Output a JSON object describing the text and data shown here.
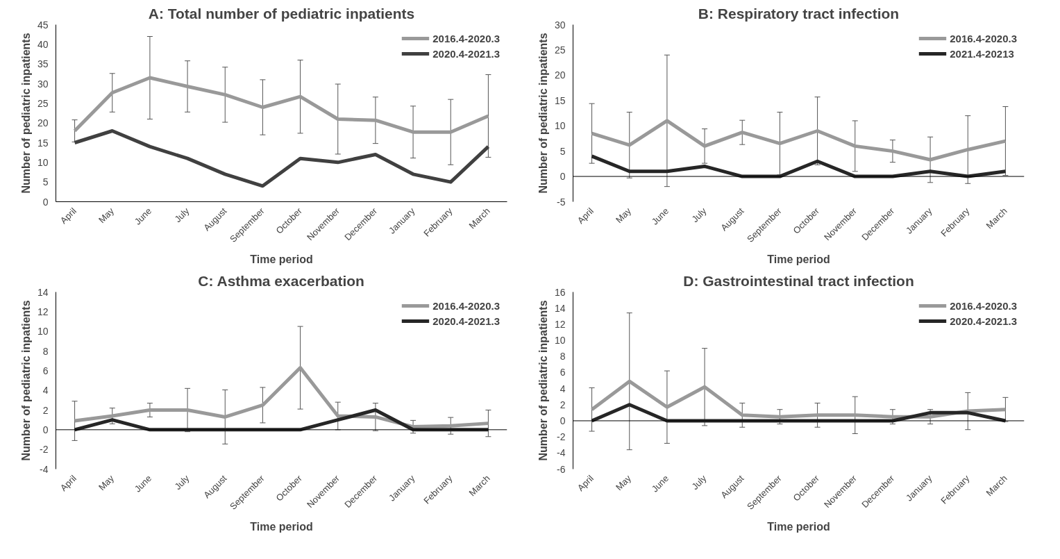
{
  "chart_data": [
    {
      "type": "line",
      "title": "A: Total number of pediatric inpatients",
      "xlabel": "Time period",
      "ylabel": "Number of pediatric inpatients",
      "categories": [
        "April",
        "May",
        "June",
        "July",
        "August",
        "September",
        "October",
        "November",
        "December",
        "January",
        "February",
        "March"
      ],
      "ylim": [
        0,
        45
      ],
      "yticks": [
        0,
        5,
        10,
        15,
        20,
        25,
        30,
        35,
        40,
        45
      ],
      "grid": false,
      "legend": "top right",
      "marker": "none",
      "line_style": "solid",
      "series": [
        {
          "name": "2016.4-2020.3",
          "color": "#999999",
          "values": [
            18,
            27.7,
            31.5,
            29.3,
            27.2,
            24,
            26.7,
            21,
            20.7,
            17.7,
            17.7,
            21.8
          ],
          "errors": [
            2.8,
            4.9,
            10.5,
            6.5,
            7,
            7,
            9.3,
            8.9,
            5.9,
            6.6,
            8.3,
            10.5
          ]
        },
        {
          "name": "2020.4-2021.3",
          "color": "#404040",
          "values": [
            15,
            18,
            14,
            11,
            7,
            4,
            11,
            10,
            12,
            7,
            5,
            14
          ]
        }
      ]
    },
    {
      "type": "line",
      "title": "B: Respiratory tract infection",
      "xlabel": "Time period",
      "ylabel": "Number of pediatric inpatients",
      "categories": [
        "April",
        "May",
        "June",
        "July",
        "August",
        "September",
        "October",
        "November",
        "December",
        "January",
        "February",
        "March"
      ],
      "ref_lines": [
        {
          "axis": "y",
          "value": 0,
          "color": "#000000"
        }
      ],
      "ylim": [
        -5,
        30
      ],
      "yticks": [
        -5,
        0,
        5,
        10,
        15,
        20,
        25,
        30
      ],
      "grid": false,
      "legend": "top right",
      "marker": "none",
      "line_style": "solid",
      "series": [
        {
          "name": "2016.4-2020.3",
          "color": "#999999",
          "values": [
            8.5,
            6.2,
            11,
            6,
            8.7,
            6.5,
            9,
            6,
            5,
            3.3,
            5.3,
            7
          ],
          "errors": [
            5.9,
            6.5,
            13,
            3.4,
            2.4,
            6.2,
            6.7,
            5,
            2.2,
            4.5,
            6.7,
            6.8
          ]
        },
        {
          "name": "2021.4-20213",
          "color": "#262626",
          "values": [
            4,
            1,
            1,
            2,
            0,
            0,
            3,
            0,
            0,
            1,
            0,
            1
          ]
        }
      ]
    },
    {
      "type": "line",
      "title": "C: Asthma exacerbation",
      "xlabel": "Time period",
      "ylabel": "Number of pediatric inpatients",
      "categories": [
        "April",
        "May",
        "June",
        "July",
        "August",
        "September",
        "October",
        "November",
        "December",
        "January",
        "February",
        "March"
      ],
      "ref_lines": [
        {
          "axis": "y",
          "value": 0,
          "color": "#000000"
        }
      ],
      "ylim": [
        -4,
        14
      ],
      "yticks": [
        -4,
        -2,
        0,
        2,
        4,
        6,
        8,
        10,
        12,
        14
      ],
      "grid": false,
      "legend": "top right",
      "marker": "none",
      "line_style": "solid",
      "series": [
        {
          "name": "2016.4-2020.3",
          "color": "#999999",
          "values": [
            0.9,
            1.4,
            2,
            2,
            1.3,
            2.5,
            6.3,
            1.4,
            1.3,
            0.3,
            0.4,
            0.65
          ],
          "errors": [
            2,
            0.8,
            0.7,
            2.2,
            2.75,
            1.8,
            4.2,
            1.4,
            1.4,
            0.65,
            0.85,
            1.35
          ]
        },
        {
          "name": "2020.4-2021.3",
          "color": "#262626",
          "values": [
            0,
            1,
            0,
            0,
            0,
            0,
            0,
            1,
            2,
            0,
            0,
            0
          ]
        }
      ]
    },
    {
      "type": "line",
      "title": "D: Gastrointestinal tract infection",
      "xlabel": "Time period",
      "ylabel": "Number of pediatric inpatients",
      "categories": [
        "April",
        "May",
        "June",
        "July",
        "August",
        "September",
        "October",
        "November",
        "December",
        "January",
        "February",
        "March"
      ],
      "ref_lines": [
        {
          "axis": "y",
          "value": 0,
          "color": "#000000"
        }
      ],
      "ylim": [
        -6,
        16
      ],
      "yticks": [
        -6,
        -4,
        -2,
        0,
        2,
        4,
        6,
        8,
        10,
        12,
        14,
        16
      ],
      "grid": false,
      "legend": "top right",
      "marker": "none",
      "line_style": "solid",
      "series": [
        {
          "name": "2016.4-2020.3",
          "color": "#999999",
          "values": [
            1.4,
            4.9,
            1.7,
            4.2,
            0.7,
            0.5,
            0.7,
            0.7,
            0.5,
            0.5,
            1.2,
            1.4
          ],
          "errors": [
            2.7,
            8.5,
            4.5,
            4.8,
            1.5,
            0.9,
            1.5,
            2.3,
            0.9,
            0.9,
            2.3,
            1.5
          ]
        },
        {
          "name": "2020.4-2021.3",
          "color": "#262626",
          "values": [
            0,
            2,
            0,
            0,
            0,
            0,
            0,
            0,
            0,
            1,
            1,
            0
          ]
        }
      ]
    }
  ]
}
